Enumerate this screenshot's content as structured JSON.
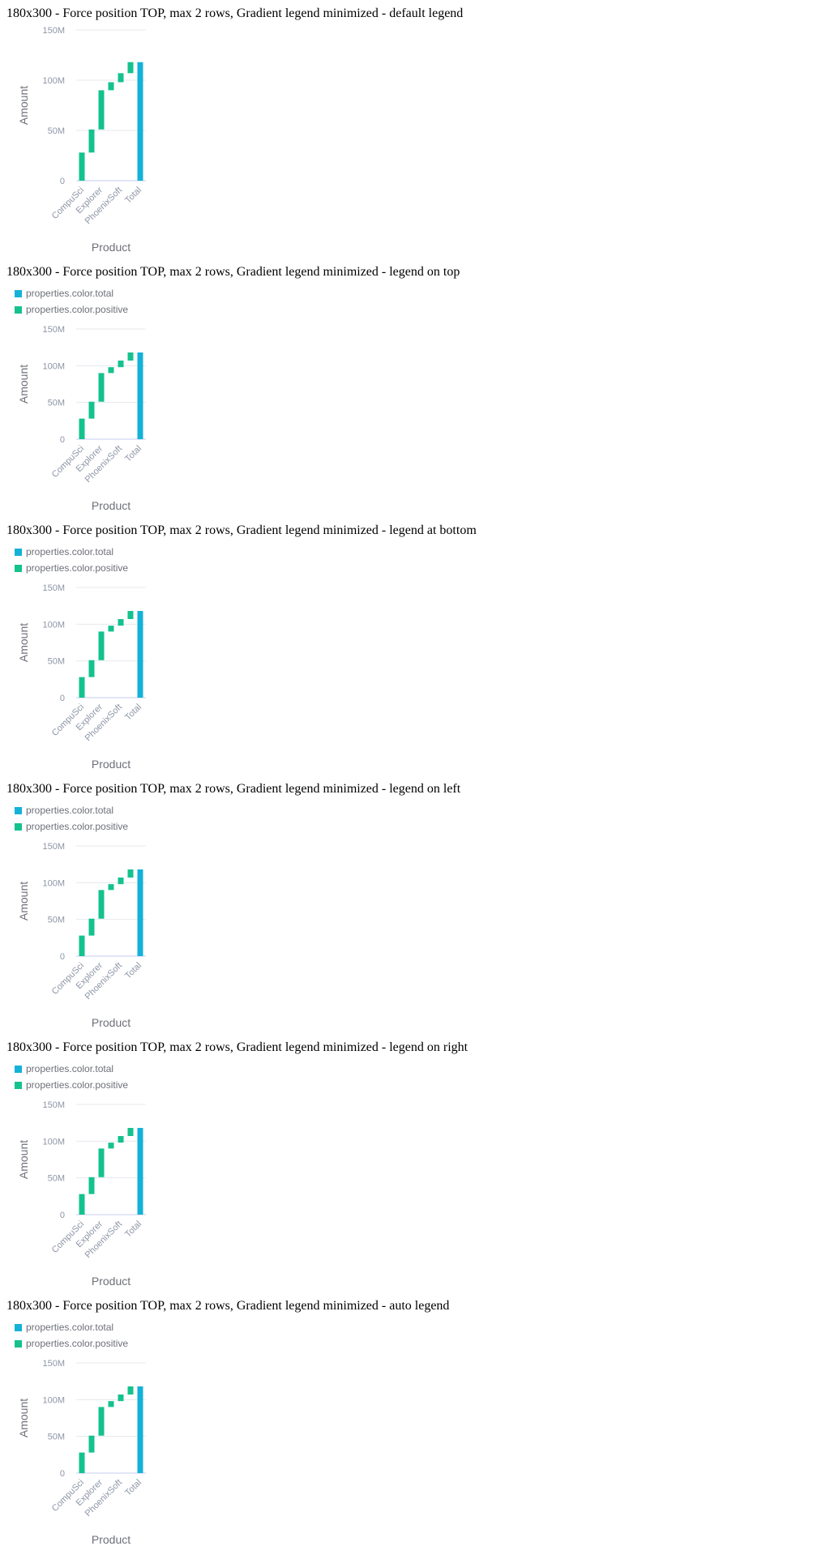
{
  "colors": {
    "positive": "#14c28e",
    "total": "#14b2d8",
    "grid": "#e6e8ee",
    "baseline": "#c4cdf0",
    "tick": "#8d96a6",
    "axis_title": "#6d7078"
  },
  "sections": [
    {
      "title": "180x300 - Force position TOP, max 2 rows, Gradient legend minimized - default legend",
      "show_legend": false
    },
    {
      "title": "180x300 - Force position TOP, max 2 rows, Gradient legend minimized - legend on top",
      "show_legend": true
    },
    {
      "title": "180x300 - Force position TOP, max 2 rows, Gradient legend minimized - legend at bottom",
      "show_legend": true
    },
    {
      "title": "180x300 - Force position TOP, max 2 rows, Gradient legend minimized - legend on left",
      "show_legend": true
    },
    {
      "title": "180x300 - Force position TOP, max 2 rows, Gradient legend minimized - legend on right",
      "show_legend": true
    },
    {
      "title": "180x300 - Force position TOP, max 2 rows, Gradient legend minimized - auto legend",
      "show_legend": true
    }
  ],
  "legend": [
    {
      "label": "properties.color.total",
      "color": "#14b2d8"
    },
    {
      "label": "properties.color.positive",
      "color": "#14c28e"
    }
  ],
  "chart_data": {
    "type": "waterfall",
    "xlabel": "Product",
    "ylabel": "Amount",
    "ylim": [
      0,
      150000000
    ],
    "y_ticks": [
      {
        "value": 0,
        "label": "0"
      },
      {
        "value": 50000000,
        "label": "50M"
      },
      {
        "value": 100000000,
        "label": "100M"
      },
      {
        "value": 150000000,
        "label": "150M"
      }
    ],
    "x_tick_labels": [
      "CompuSci",
      "Explorer",
      "PhoenixSoft",
      "Total"
    ],
    "bars": [
      {
        "kind": "positive",
        "start": 0,
        "end": 28000000
      },
      {
        "kind": "positive",
        "start": 28000000,
        "end": 51000000
      },
      {
        "kind": "positive",
        "start": 51000000,
        "end": 90000000
      },
      {
        "kind": "positive",
        "start": 90000000,
        "end": 98000000
      },
      {
        "kind": "positive",
        "start": 98000000,
        "end": 107000000
      },
      {
        "kind": "positive",
        "start": 107000000,
        "end": 118000000
      },
      {
        "kind": "total",
        "start": 0,
        "end": 118000000
      }
    ],
    "grid": true
  }
}
